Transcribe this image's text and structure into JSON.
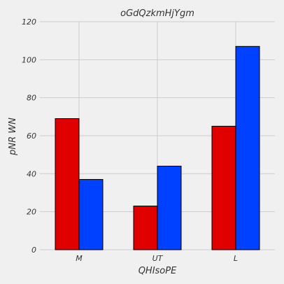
{
  "chart_data": {
    "type": "bar",
    "title": "oGdQzkmHjYgm",
    "xlabel": "QHIsoPE",
    "ylabel": "pNR WN",
    "categories": [
      "M",
      "UT",
      "L"
    ],
    "series": [
      {
        "values": [
          69,
          23,
          65
        ],
        "color": "#e00000"
      },
      {
        "values": [
          37,
          44,
          107
        ],
        "color": "#0040ff"
      }
    ],
    "ylim": [
      0,
      120
    ],
    "yticks": [
      0,
      20,
      40,
      60,
      80,
      100,
      120
    ],
    "grid": true,
    "background": "#f0f0f0",
    "grid_color": "#cbcbcb"
  }
}
